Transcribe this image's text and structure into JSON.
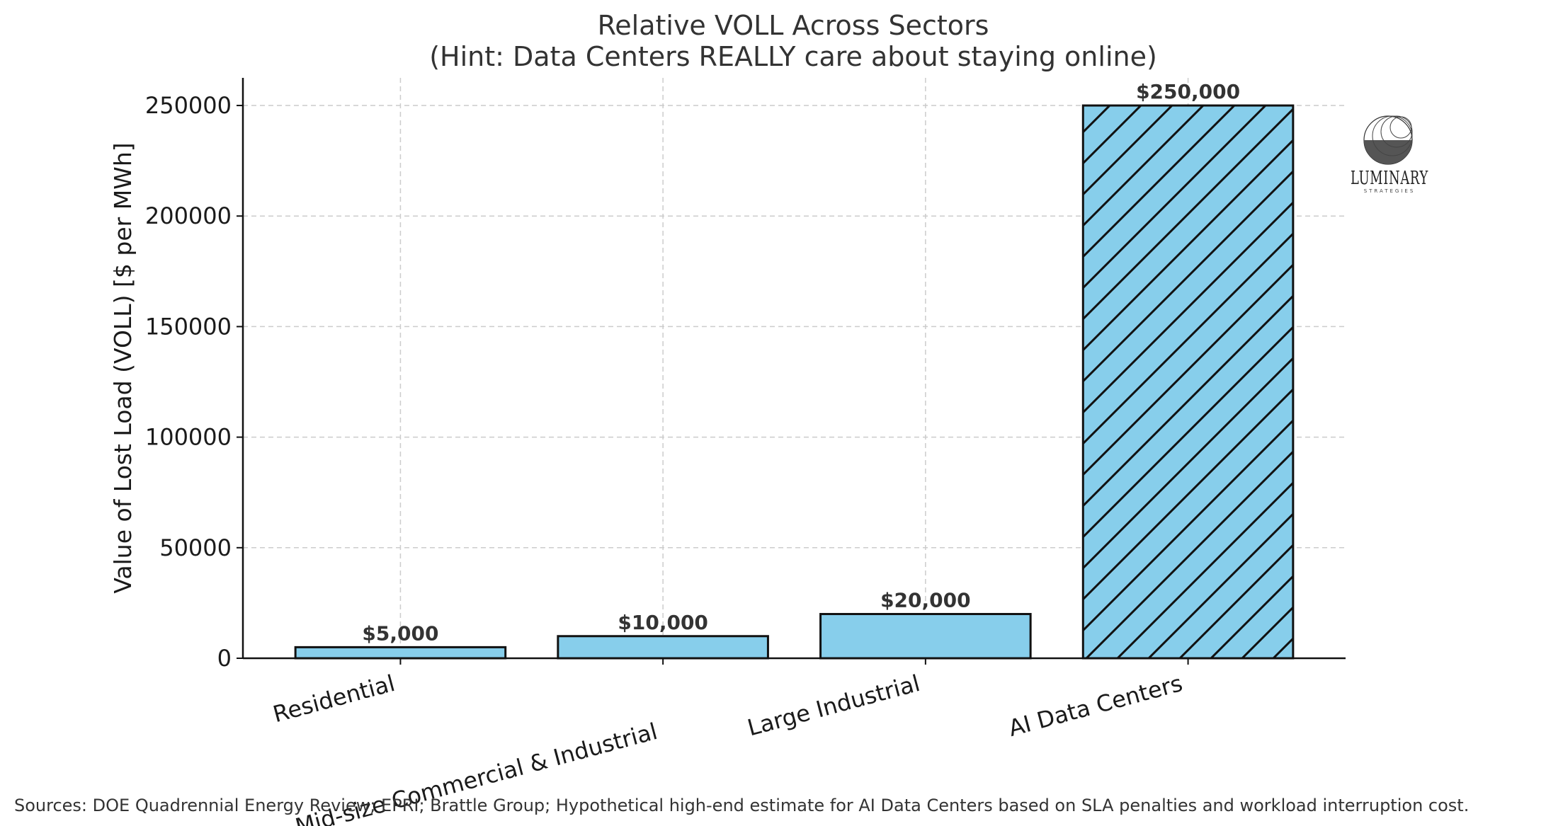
{
  "chart_data": {
    "type": "bar",
    "title_line1": "Relative VOLL Across Sectors",
    "title_line2": "(Hint: Data Centers REALLY care about staying online)",
    "xlabel": "",
    "ylabel": "Value of Lost Load (VOLL) [$ per MWh]",
    "categories": [
      "Residential",
      "Mid-size Commercial & Industrial",
      "Large Industrial",
      "AI Data Centers"
    ],
    "values": [
      5000,
      10000,
      20000,
      250000
    ],
    "value_labels": [
      "$5,000",
      "$10,000",
      "$20,000",
      "$250,000"
    ],
    "hatched": [
      false,
      false,
      false,
      true
    ],
    "ylim": [
      0,
      262500
    ],
    "yticks": [
      0,
      50000,
      100000,
      150000,
      200000,
      250000
    ],
    "ytick_labels": [
      "0",
      "50000",
      "100000",
      "150000",
      "200000",
      "250000"
    ],
    "grid": true,
    "bar_color": "#87CEEB",
    "edge_color": "#111111"
  },
  "logo": {
    "name": "LUMINARY",
    "subtitle": "STRATEGIES"
  },
  "source_note": "Sources: DOE Quadrennial Energy Review; EPRI; Brattle Group; Hypothetical high-end estimate for AI Data Centers based on SLA penalties and workload interruption cost."
}
